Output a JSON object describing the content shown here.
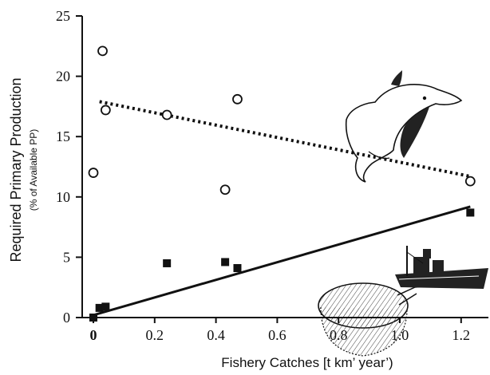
{
  "chart_data": {
    "type": "scatter",
    "xlabel": "Fishery Catches [t km’ year’)",
    "ylabel": "Required Primary Production",
    "ylabel_sub": "(% of Available PP)",
    "xlim": [
      0,
      1.25
    ],
    "ylim": [
      0,
      25
    ],
    "x_ticks": [
      {
        "value": 0,
        "label": "0"
      },
      {
        "value": 0.2,
        "label": "0.2"
      },
      {
        "value": 0.4,
        "label": "0.4"
      },
      {
        "value": 0.6,
        "label": "0.6"
      },
      {
        "value": 0.8,
        "label": "0.8"
      },
      {
        "value": 1.0,
        "label": "1.0"
      },
      {
        "value": 1.2,
        "label": "1.2"
      }
    ],
    "y_ticks": [
      {
        "value": 0,
        "label": "0"
      },
      {
        "value": 5,
        "label": "5"
      },
      {
        "value": 10,
        "label": "10"
      },
      {
        "value": 15,
        "label": "15"
      },
      {
        "value": 20,
        "label": "20"
      },
      {
        "value": 25,
        "label": "25"
      }
    ],
    "series": [
      {
        "marker": "open-circle",
        "trend_style": "dotted",
        "points": [
          {
            "x": 0.0,
            "y": 12.0
          },
          {
            "x": 0.03,
            "y": 22.1
          },
          {
            "x": 0.04,
            "y": 17.2
          },
          {
            "x": 0.24,
            "y": 16.8
          },
          {
            "x": 0.43,
            "y": 10.6
          },
          {
            "x": 0.47,
            "y": 18.1
          },
          {
            "x": 1.23,
            "y": 11.3
          }
        ],
        "trend": {
          "x0": 0.02,
          "y0": 17.9,
          "x1": 1.23,
          "y1": 11.7
        }
      },
      {
        "marker": "filled-square",
        "trend_style": "solid",
        "points": [
          {
            "x": 0.0,
            "y": 0.0
          },
          {
            "x": 0.02,
            "y": 0.8
          },
          {
            "x": 0.04,
            "y": 0.9
          },
          {
            "x": 0.24,
            "y": 4.5
          },
          {
            "x": 0.43,
            "y": 4.6
          },
          {
            "x": 0.47,
            "y": 4.1
          },
          {
            "x": 1.23,
            "y": 8.7
          }
        ],
        "trend": {
          "x0": 0.0,
          "y0": 0.2,
          "x1": 1.23,
          "y1": 9.2
        }
      }
    ],
    "decorations": [
      "dolphin-icon",
      "fishing-boat-icon",
      "fishing-net-icon"
    ],
    "colors": {
      "ink": "#111111",
      "dolphin_fill": "#222222"
    }
  }
}
